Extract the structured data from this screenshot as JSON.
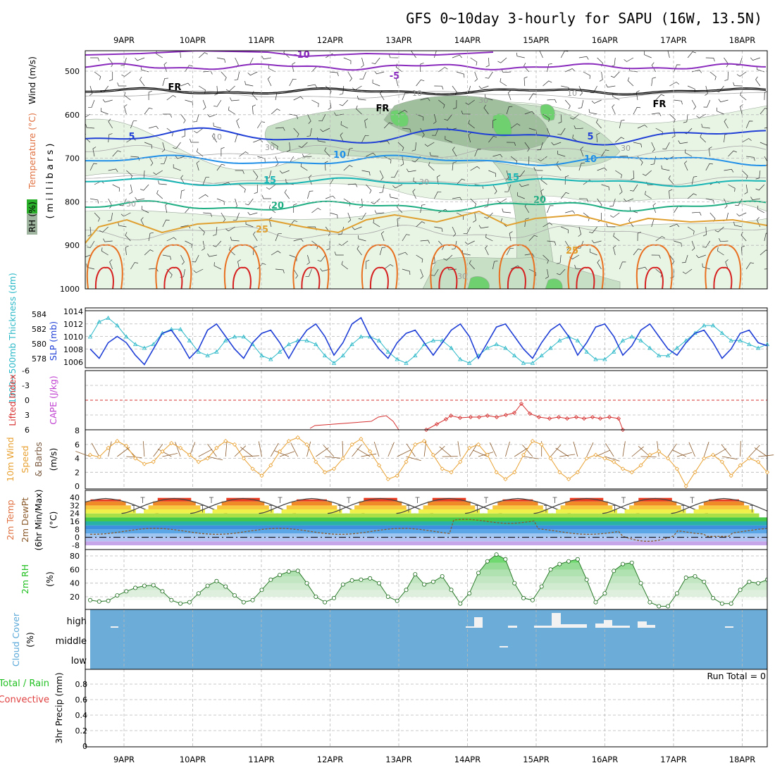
{
  "title": "GFS 0~10day 3-hourly for SAPU (16W, 13.5N)",
  "dates": [
    "9APR",
    "10APR",
    "11APR",
    "12APR",
    "13APR",
    "14APR",
    "15APR",
    "16APR",
    "17APR",
    "18APR"
  ],
  "colors": {
    "rh_shades": [
      "#e8f4e4",
      "#c7dfc5",
      "#9fbf9d",
      "#6fd06f"
    ],
    "temp_line_cold": "#8a2bbd",
    "temp_line_fr": "#000000",
    "temp_line_5": "#1f3fd6",
    "temp_line_10": "#1f8fe8",
    "temp_line_15": "#17b5b5",
    "temp_line_20": "#1fae82",
    "temp_line_25": "#e0a030",
    "temp_line_30": "#e87020",
    "temp_line_35": "#d62020",
    "slp": "#1f3fd6",
    "thickness": "#2ab8c8",
    "lifted_index": "#d63030",
    "wind_speed": "#e8a030",
    "cloud_bg": "#6badd8",
    "rh2m": "#22c022",
    "dewpoint": "#8b5a2b"
  },
  "panels": {
    "upper": {
      "ylabel_rh": "RH (%)",
      "ylabel_temp": "Temperature (°C)",
      "ylabel_wind": "Wind (m/s)",
      "ylabel_mb": "( m i l l i b a r s )",
      "levels": [
        "500",
        "600",
        "700",
        "800",
        "900",
        "1000"
      ],
      "contour_labels": [
        "-10",
        "-5",
        "FR",
        "FR",
        "FR",
        "5",
        "5",
        "10",
        "10",
        "15",
        "15",
        "20",
        "20",
        "25",
        "25",
        "10",
        "30",
        "30",
        "30",
        "30",
        "10",
        "10",
        "30",
        "30"
      ]
    },
    "slp": {
      "ylabel_left": "1000~500mb Thickness (dm)",
      "ylabel_right": "SLP (mb)",
      "left_ticks": [
        "584",
        "582",
        "580",
        "578"
      ],
      "right_ticks": [
        "1014",
        "1012",
        "1010",
        "1008",
        "1006"
      ]
    },
    "li": {
      "ylabel_left": "Lifted Index",
      "ylabel_right": "CAPE (J/kg)",
      "ticks": [
        "-6",
        "-3",
        "0",
        "3",
        "6"
      ]
    },
    "wind10": {
      "ylabel_1": "10m Wind",
      "ylabel_2": "Speed",
      "ylabel_3": "& Barbs",
      "ylabel_unit": "(m/s)",
      "ticks": [
        "8",
        "6",
        "4",
        "2",
        "0"
      ]
    },
    "temp2m": {
      "ylabel_1": "2m Temp",
      "ylabel_2": "2m DewPt",
      "ylabel_3": "(6hr Min/Max)",
      "ylabel_unit": "(°C)",
      "ticks": [
        "40",
        "32",
        "24",
        "16",
        "8",
        "0",
        "-8"
      ]
    },
    "rh2m": {
      "ylabel": "2m RH",
      "ylabel_unit": "(%)",
      "ticks": [
        "80",
        "60",
        "40",
        "20"
      ]
    },
    "cloud": {
      "ylabel": "Cloud Cover",
      "ylabel_unit": "(%)",
      "levels": [
        "high",
        "middle",
        "low"
      ]
    },
    "precip": {
      "ylabel_1": "Total / Rain",
      "ylabel_2": "Convective",
      "ylabel_3": "3hr Precip (mm)",
      "ticks": [
        "0.8",
        "0.6",
        "0.4",
        "0.2",
        "0"
      ],
      "run_total": "Run Total = 0"
    }
  },
  "chart_data": [
    {
      "type": "line",
      "name": "SLP",
      "unit": "mb",
      "x": [
        "9APR 00Z",
        "9APR 03Z",
        "9APR 06Z",
        "9APR 09Z",
        "9APR 12Z",
        "9APR 15Z",
        "9APR 18Z",
        "9APR 21Z",
        "10APR 00Z",
        "10APR 03Z",
        "10APR 06Z",
        "10APR 09Z",
        "10APR 12Z",
        "10APR 15Z",
        "10APR 18Z",
        "10APR 21Z",
        "11APR 00Z",
        "11APR 03Z",
        "11APR 06Z",
        "11APR 09Z",
        "11APR 12Z",
        "11APR 15Z",
        "11APR 18Z",
        "11APR 21Z",
        "12APR 00Z",
        "12APR 03Z",
        "12APR 06Z",
        "12APR 09Z",
        "12APR 12Z",
        "12APR 15Z",
        "12APR 18Z",
        "12APR 21Z",
        "13APR 00Z",
        "13APR 03Z",
        "13APR 06Z",
        "13APR 09Z",
        "13APR 12Z",
        "13APR 15Z",
        "13APR 18Z",
        "13APR 21Z",
        "14APR 00Z",
        "14APR 03Z",
        "14APR 06Z",
        "14APR 09Z",
        "14APR 12Z",
        "14APR 15Z",
        "14APR 18Z",
        "14APR 21Z",
        "15APR 00Z",
        "15APR 03Z",
        "15APR 06Z",
        "15APR 09Z",
        "15APR 12Z",
        "15APR 15Z",
        "15APR 18Z",
        "15APR 21Z",
        "16APR 00Z",
        "16APR 03Z",
        "16APR 06Z",
        "16APR 09Z",
        "16APR 12Z",
        "16APR 15Z",
        "16APR 18Z",
        "16APR 21Z",
        "17APR 00Z",
        "17APR 03Z",
        "17APR 06Z",
        "17APR 09Z",
        "17APR 12Z",
        "17APR 15Z",
        "17APR 18Z",
        "17APR 21Z",
        "18APR 00Z",
        "18APR 03Z",
        "18APR 06Z",
        "18APR 09Z"
      ],
      "values": [
        1008,
        1006.5,
        1009,
        1010,
        1009,
        1007,
        1005.5,
        1008,
        1010.5,
        1011,
        1009,
        1006.5,
        1008,
        1011,
        1012,
        1010,
        1008,
        1006.5,
        1009,
        1010.5,
        1011,
        1009,
        1006.5,
        1009,
        1011,
        1012,
        1010,
        1007,
        1009,
        1012,
        1013,
        1010,
        1008,
        1006.5,
        1009,
        1010.5,
        1011,
        1009,
        1007,
        1009,
        1011,
        1012,
        1010,
        1006.5,
        1009,
        1011.5,
        1012,
        1010,
        1008,
        1006.5,
        1009,
        1011,
        1012,
        1010,
        1007,
        1009,
        1011.5,
        1012,
        1010,
        1007,
        1008.5,
        1011,
        1012,
        1010,
        1008,
        1007,
        1009,
        1010.5,
        1011,
        1009,
        1006.5,
        1008,
        1010.5,
        1011,
        1009,
        1008.5
      ]
    },
    {
      "type": "line",
      "name": "1000~500mb Thickness",
      "unit": "dm",
      "x_ref": "same as SLP",
      "values": [
        581,
        583,
        583.5,
        582.5,
        581,
        580,
        579.5,
        580,
        581.5,
        582,
        582,
        580.5,
        579,
        578.5,
        579,
        580.5,
        581,
        581,
        580,
        578.5,
        578,
        579,
        580,
        580.5,
        580.5,
        580,
        578.5,
        577.5,
        578.5,
        580,
        581,
        581,
        580.5,
        579,
        578,
        577.5,
        578.5,
        580,
        580.5,
        580.5,
        579.5,
        578,
        577.5,
        578.5,
        579.5,
        580,
        579.5,
        578.5,
        577.5,
        577.5,
        578.5,
        579.5,
        580.5,
        581,
        580.5,
        579,
        578,
        578,
        579,
        580.5,
        581,
        580.5,
        579.5,
        578.5,
        578.5,
        579.5,
        580.5,
        581.5,
        582.5,
        582.5,
        581.5,
        580.5,
        580.5,
        580,
        579.5,
        580
      ]
    },
    {
      "type": "line",
      "name": "10m Wind Speed",
      "unit": "m/s",
      "values": [
        4.5,
        4.2,
        5.5,
        6.5,
        5.8,
        4,
        3.2,
        3.5,
        5,
        6.2,
        5.5,
        4.5,
        3.5,
        4,
        5.5,
        6.5,
        6,
        4,
        2.5,
        1.5,
        3,
        5,
        6.5,
        7,
        6,
        3.5,
        2,
        2.5,
        4,
        6,
        6.8,
        5,
        3,
        1,
        1.5,
        3.5,
        6,
        6.5,
        4.5,
        2.5,
        2,
        3.5,
        5.5,
        6,
        4.5,
        2,
        1,
        2,
        4.5,
        6.5,
        6,
        4,
        2,
        1,
        2,
        4,
        4.5,
        4,
        3.5,
        2.5,
        2,
        3,
        4.5,
        5,
        4,
        2.5,
        0,
        2,
        4,
        4.5,
        3.5,
        1.5,
        3,
        4,
        3.5,
        2
      ]
    },
    {
      "type": "line",
      "name": "2m RH",
      "unit": "%",
      "values": [
        15,
        13,
        14,
        22,
        28,
        33,
        36,
        37,
        28,
        15,
        10,
        12,
        25,
        36,
        43,
        35,
        22,
        12,
        15,
        30,
        45,
        52,
        57,
        58,
        40,
        20,
        12,
        18,
        38,
        44,
        45,
        47,
        40,
        20,
        14,
        30,
        53,
        38,
        42,
        50,
        30,
        10,
        25,
        55,
        72,
        82,
        75,
        40,
        18,
        15,
        35,
        60,
        68,
        72,
        75,
        45,
        12,
        25,
        58,
        68,
        70,
        40,
        12,
        6,
        6,
        25,
        48,
        50,
        42,
        18,
        10,
        10,
        30,
        42,
        40,
        45
      ]
    },
    {
      "type": "bar",
      "name": "3hr Precip",
      "unit": "mm",
      "ylim": [
        0,
        0.9
      ],
      "values": []
    }
  ]
}
